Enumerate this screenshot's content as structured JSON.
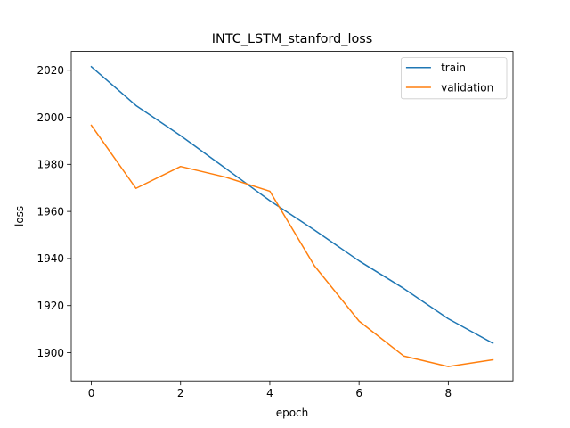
{
  "chart_data": {
    "type": "line",
    "title": "INTC_LSTM_stanford_loss",
    "xlabel": "epoch",
    "ylabel": "loss",
    "xlim": [
      -0.45,
      9.45
    ],
    "ylim": [
      1888,
      2028
    ],
    "xticks": [
      0,
      2,
      4,
      6,
      8
    ],
    "yticks": [
      1900,
      1920,
      1940,
      1960,
      1980,
      2000,
      2020
    ],
    "grid": false,
    "legend_position": "top-right",
    "x": [
      0,
      1,
      2,
      3,
      4,
      5,
      6,
      7,
      8,
      9
    ],
    "series": [
      {
        "name": "train",
        "color": "#1f77b4",
        "values": [
          2021.5,
          2005.0,
          1992.2,
          1978.4,
          1964.6,
          1952.1,
          1939.0,
          1927.3,
          1914.4,
          1904.0
        ]
      },
      {
        "name": "validation",
        "color": "#ff7f0e",
        "values": [
          1996.6,
          1969.8,
          1979.1,
          1974.6,
          1968.6,
          1936.9,
          1913.4,
          1898.6,
          1894.1,
          1897.0
        ]
      }
    ]
  }
}
